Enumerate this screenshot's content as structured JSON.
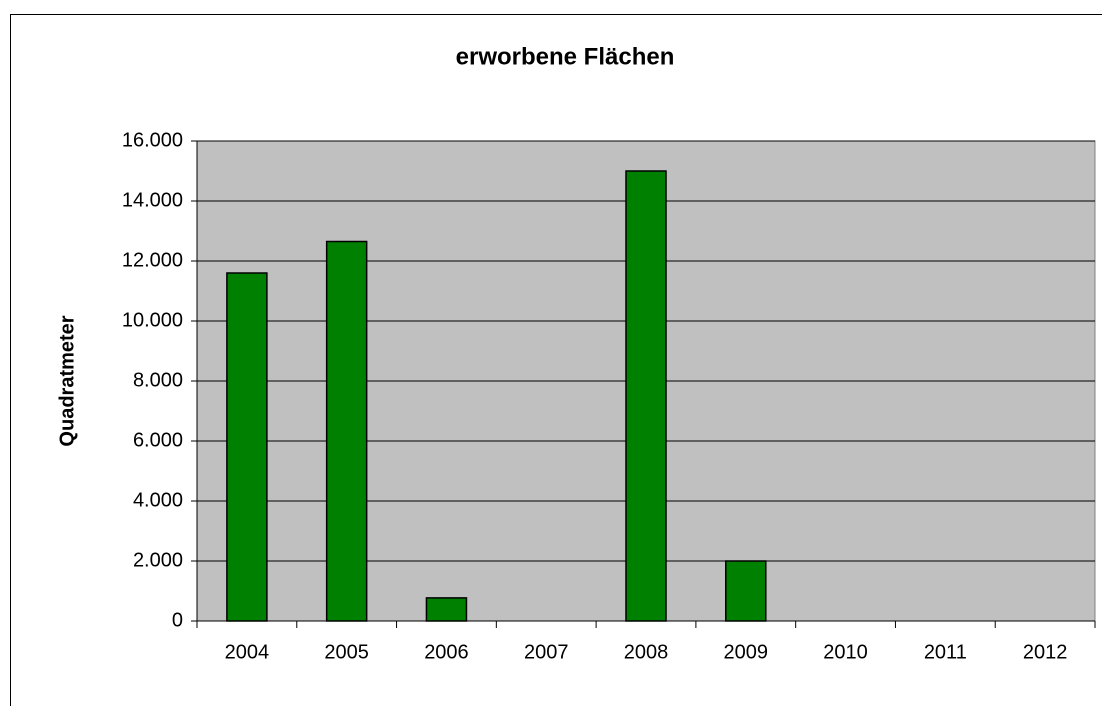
{
  "chart_data": {
    "type": "bar",
    "title": "erworbene Flächen",
    "y_label": "Quadratmeter",
    "categories": [
      "2004",
      "2005",
      "2006",
      "2007",
      "2008",
      "2009",
      "2010",
      "2011",
      "2012"
    ],
    "values": [
      11600,
      12650,
      770,
      0,
      15000,
      2000,
      0,
      0,
      0
    ],
    "color": "#008000",
    "ylim": [
      0,
      16000
    ],
    "yticks": [
      0,
      {
        "value": 2000,
        "label": "2.000"
      },
      {
        "value": 4000,
        "label": "4.000"
      },
      {
        "value": 6000,
        "label": "6.000"
      },
      {
        "value": 8000,
        "label": "8.000"
      },
      {
        "value": 10000,
        "label": "10.000"
      },
      {
        "value": 12000,
        "label": "12.000"
      },
      {
        "value": 14000,
        "label": "14.000"
      },
      {
        "value": 16000,
        "label": "16.000"
      }
    ],
    "grid": true,
    "plot_background": "#c0c0c0"
  }
}
